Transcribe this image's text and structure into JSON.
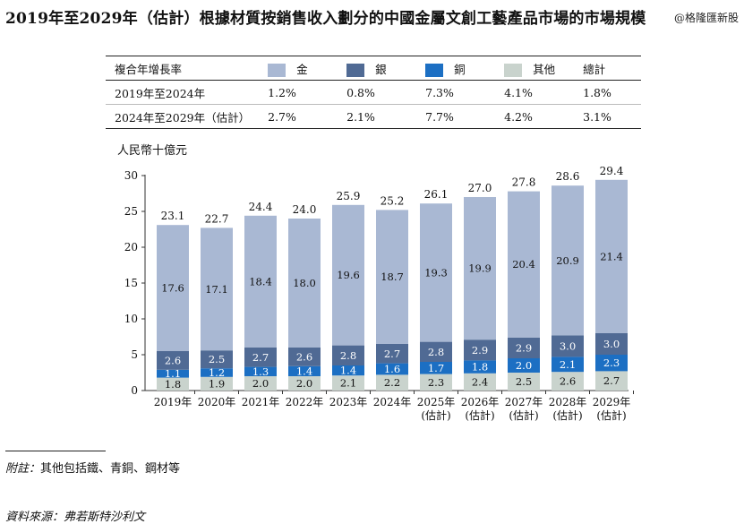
{
  "title": "2019年至2029年（估計）根據材質按銷售收入劃分的中國金屬文創工藝產品市場的市場規模",
  "watermark": "@格隆匯新股",
  "cagr_table": {
    "header": "複合年增長率",
    "legend": [
      {
        "name": "金",
        "color": "#a9b8d3"
      },
      {
        "name": "銀",
        "color": "#506a94"
      },
      {
        "name": "銅",
        "color": "#1c6fc3"
      },
      {
        "name": "其他",
        "color": "#c9d3cd"
      }
    ],
    "total_label": "總計",
    "rows": [
      {
        "period": "2019年至2024年",
        "values": [
          "1.2%",
          "0.8%",
          "7.3%",
          "4.1%",
          "1.8%"
        ]
      },
      {
        "period": "2024年至2029年（估計）",
        "values": [
          "2.7%",
          "2.1%",
          "7.7%",
          "4.2%",
          "3.1%"
        ]
      }
    ]
  },
  "chart_data": {
    "type": "bar",
    "stacked": true,
    "ylabel": "人民幣十億元",
    "ylim": [
      0,
      30
    ],
    "yticks": [
      0,
      5,
      10,
      15,
      20,
      25,
      30
    ],
    "categories": [
      "2019年",
      "2020年",
      "2021年",
      "2022年",
      "2023年",
      "2024年",
      "2025年\n(估計)",
      "2026年\n(估計)",
      "2027年\n(估計)",
      "2028年\n(估計)",
      "2029年\n(估計)"
    ],
    "series": [
      {
        "name": "其他",
        "color": "#c9d3cd",
        "values": [
          1.8,
          1.9,
          2.0,
          2.0,
          2.1,
          2.2,
          2.3,
          2.4,
          2.5,
          2.6,
          2.7
        ]
      },
      {
        "name": "銅",
        "color": "#1c6fc3",
        "values": [
          1.1,
          1.2,
          1.3,
          1.4,
          1.4,
          1.6,
          1.7,
          1.8,
          2.0,
          2.1,
          2.3
        ]
      },
      {
        "name": "銀",
        "color": "#506a94",
        "values": [
          2.6,
          2.5,
          2.7,
          2.6,
          2.8,
          2.7,
          2.8,
          2.9,
          2.9,
          3.0,
          3.0
        ]
      },
      {
        "name": "金",
        "color": "#a9b8d3",
        "values": [
          17.6,
          17.1,
          18.4,
          18.0,
          19.6,
          18.7,
          19.3,
          19.9,
          20.4,
          20.9,
          21.4
        ]
      }
    ],
    "totals": [
      23.1,
      22.7,
      24.4,
      24.0,
      25.9,
      25.2,
      26.1,
      27.0,
      27.8,
      28.6,
      29.4
    ],
    "grid": false,
    "legend": "table-above"
  },
  "note": {
    "label": "附註：",
    "text": "其他包括鐵、青銅、鋼材等"
  },
  "source": {
    "label": "資料來源：",
    "text": "弗若斯特沙利文"
  }
}
